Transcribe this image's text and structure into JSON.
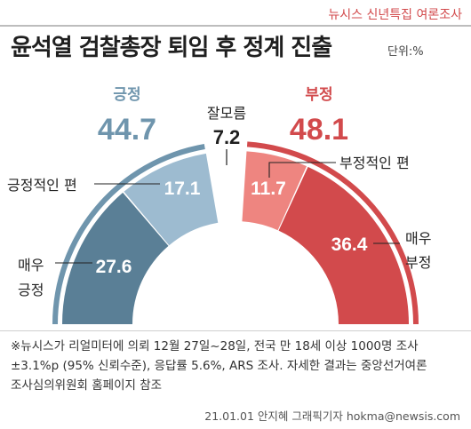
{
  "source_tag": "뉴시스 신년특집 여론조사",
  "title": "윤석열 검찰총장 퇴임 후 정계 진출",
  "unit": "단위:%",
  "note_lines": [
    "※뉴시스가 리얼미터에 의뢰 12월 27일~28일, 전국 만 18세 이상 1000명 조사",
    "±3.1%p (95% 신뢰수준), 응답률 5.6%, ARS 조사. 자세한 결과는 중앙선거여론",
    "조사심의위원회 홈페이지 참조"
  ],
  "credit": "21.01.01 안지혜 그래픽기자 hokma@newsis.com",
  "colors": {
    "positive_dark": "#5a7f96",
    "positive_light": "#9dbbd0",
    "neutral": "#ffffff",
    "negative_light": "#ee8580",
    "negative_dark": "#d24a4c",
    "outer_positive": "#6f95ad",
    "outer_negative": "#d24a4c"
  },
  "chart_data": {
    "type": "pie",
    "shape": "half-donut",
    "groups": [
      {
        "label": "긍정",
        "value": "44.7",
        "color": "#6f95ad"
      },
      {
        "label": "잘모름",
        "value": "7.2",
        "color": "#1f1f1f"
      },
      {
        "label": "부정",
        "value": "48.1",
        "color": "#d24a4c"
      }
    ],
    "segments": [
      {
        "label": "매우 긍정",
        "label_lines": [
          "매우",
          "긍정"
        ],
        "value": 27.6,
        "display": "27.6",
        "color": "#5a7f96"
      },
      {
        "label": "긍정적인 편",
        "label_lines": [
          "긍정적인 편"
        ],
        "value": 17.1,
        "display": "17.1",
        "color": "#9dbbd0"
      },
      {
        "label": "잘모름",
        "label_lines": [],
        "value": 7.2,
        "display": "",
        "color": "#ffffff"
      },
      {
        "label": "부정적인 편",
        "label_lines": [
          "부정적인 편"
        ],
        "value": 11.7,
        "display": "11.7",
        "color": "#ee8580"
      },
      {
        "label": "매우 부정",
        "label_lines": [
          "매우",
          "부정"
        ],
        "value": 36.4,
        "display": "36.4",
        "color": "#d24a4c"
      }
    ]
  }
}
